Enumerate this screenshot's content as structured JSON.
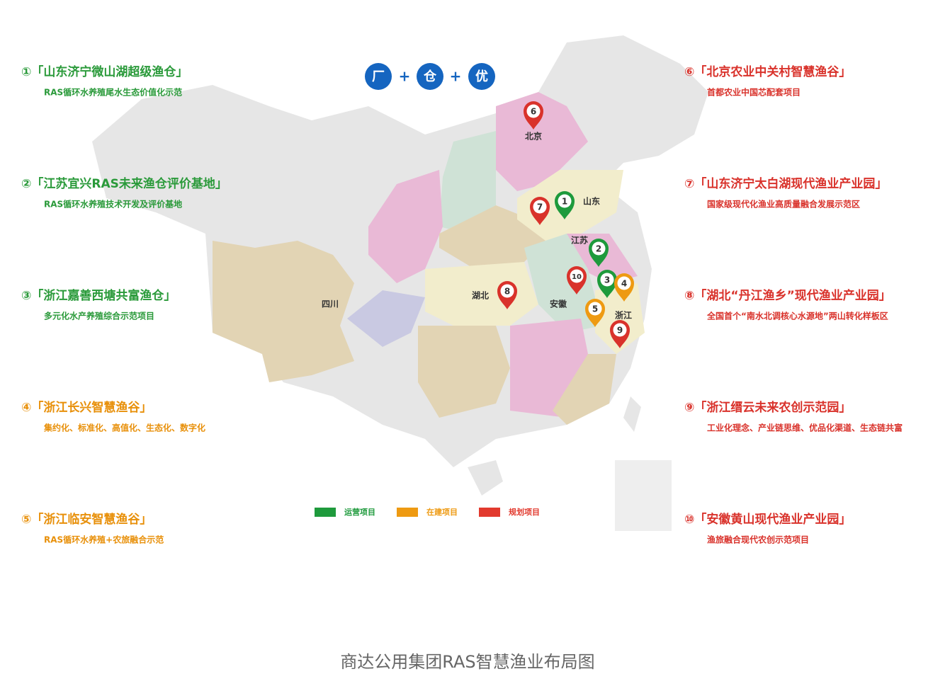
{
  "header": {
    "icons": [
      "厂",
      "仓",
      "优"
    ],
    "separator": "+"
  },
  "projects": [
    {
      "title": "①「山东济宁微山湖超级渔仓」",
      "subtitle": "RAS循环水养殖尾水生态价值化示范",
      "color": "#2a9a3a"
    },
    {
      "title": "②「江苏宜兴RAS未来渔仓评价基地」",
      "subtitle": "RAS循环水养殖技术开发及评价基地",
      "color": "#2a9a3a"
    },
    {
      "title": "③「浙江嘉善西塘共富渔仓」",
      "subtitle": "多元化水产养殖综合示范项目",
      "color": "#2a9a3a"
    },
    {
      "title": "④「浙江长兴智慧渔谷」",
      "subtitle": "集约化、标准化、高值化、生态化、数字化",
      "color": "#e8900a"
    },
    {
      "title": "⑤「浙江临安智慧渔谷」",
      "subtitle": "RAS循环水养殖+农旅融合示范",
      "color": "#e8900a"
    },
    {
      "title": "⑥「北京农业中关村智慧渔谷」",
      "subtitle": "首都农业中国芯配套项目",
      "color": "#d9322b"
    },
    {
      "title": "⑦「山东济宁太白湖现代渔业产业园」",
      "subtitle": "国家级现代化渔业高质量融合发展示范区",
      "color": "#d9322b"
    },
    {
      "title": "⑧「湖北“丹江渔乡”现代渔业产业园」",
      "subtitle": "全国首个“南水北调核心水源地”两山转化样板区",
      "color": "#d9322b"
    },
    {
      "title": "⑨「浙江缙云未来农创示范园」",
      "subtitle": "工业化理念、产业链思维、优品化渠道、生态链共富",
      "color": "#d9322b"
    },
    {
      "title": "⑩「安徽黄山现代渔业产业园」",
      "subtitle": "渔旅融合现代农创示范项目",
      "color": "#d9322b"
    }
  ],
  "provinces": [
    "北京",
    "山东",
    "江苏",
    "安徽",
    "浙江",
    "湖北",
    "四川"
  ],
  "pins": [
    {
      "label": "6",
      "color": "#d9322b"
    },
    {
      "label": "7",
      "color": "#d9322b"
    },
    {
      "label": "1",
      "color": "#1e9a3c"
    },
    {
      "label": "2",
      "color": "#1e9a3c"
    },
    {
      "label": "10",
      "color": "#d9322b"
    },
    {
      "label": "3",
      "color": "#1e9a3c"
    },
    {
      "label": "4",
      "color": "#ee9a12"
    },
    {
      "label": "5",
      "color": "#ee9a12"
    },
    {
      "label": "8",
      "color": "#d9322b"
    },
    {
      "label": "9",
      "color": "#d9322b"
    }
  ],
  "legend": [
    {
      "label": "运营项目",
      "color": "#1e9a3c"
    },
    {
      "label": "在建项目",
      "color": "#ee9a12"
    },
    {
      "label": "规划项目",
      "color": "#e23a2e"
    }
  ],
  "caption": "商达公用集团RAS智慧渔业布局图"
}
